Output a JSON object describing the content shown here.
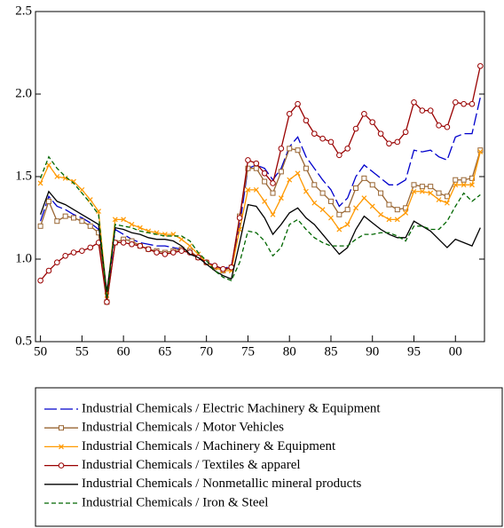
{
  "chart_data": {
    "type": "line",
    "x": [
      1950,
      1951,
      1952,
      1953,
      1954,
      1955,
      1956,
      1957,
      1958,
      1959,
      1960,
      1961,
      1962,
      1963,
      1964,
      1965,
      1966,
      1967,
      1968,
      1969,
      1970,
      1971,
      1972,
      1973,
      1974,
      1975,
      1976,
      1977,
      1978,
      1979,
      1980,
      1981,
      1982,
      1983,
      1984,
      1985,
      1986,
      1987,
      1988,
      1989,
      1990,
      1991,
      1992,
      1993,
      1994,
      1995,
      1996,
      1997,
      1998,
      1999,
      2000,
      2001,
      2002,
      2003
    ],
    "xlim": [
      1949.4,
      2003.5
    ],
    "xticks": [
      {
        "value": 1950,
        "label": "50"
      },
      {
        "value": 1955,
        "label": "55"
      },
      {
        "value": 1960,
        "label": "60"
      },
      {
        "value": 1965,
        "label": "65"
      },
      {
        "value": 1970,
        "label": "70"
      },
      {
        "value": 1975,
        "label": "75"
      },
      {
        "value": 1980,
        "label": "80"
      },
      {
        "value": 1985,
        "label": "85"
      },
      {
        "value": 1990,
        "label": "90"
      },
      {
        "value": 1995,
        "label": "95"
      },
      {
        "value": 2000,
        "label": "00"
      }
    ],
    "ylim": [
      0.5,
      2.5
    ],
    "yticks": [
      0.5,
      {
        "value": 1,
        "label": "1.0"
      },
      1.5,
      {
        "value": 2,
        "label": "2.0"
      },
      2.5
    ],
    "legend": "bottom",
    "series": [
      {
        "name": "Industrial Chemicals / Electric Machinery & Equipment",
        "color": "#0000cc",
        "linestyle": "longdash",
        "marker": "none",
        "values": [
          1.23,
          1.38,
          1.32,
          1.3,
          1.27,
          1.25,
          1.22,
          1.18,
          0.76,
          1.18,
          1.15,
          1.12,
          1.1,
          1.09,
          1.08,
          1.08,
          1.07,
          1.06,
          1.04,
          1.01,
          0.98,
          0.96,
          0.94,
          0.96,
          1.2,
          1.55,
          1.57,
          1.55,
          1.48,
          1.55,
          1.68,
          1.74,
          1.62,
          1.55,
          1.48,
          1.42,
          1.32,
          1.37,
          1.5,
          1.57,
          1.53,
          1.49,
          1.45,
          1.45,
          1.48,
          1.66,
          1.65,
          1.66,
          1.62,
          1.6,
          1.74,
          1.76,
          1.76,
          1.98
        ]
      },
      {
        "name": "Industrial Chemicals / Motor Vehicles",
        "color": "#996633",
        "linestyle": "solid",
        "marker": "square",
        "values": [
          1.2,
          1.35,
          1.23,
          1.26,
          1.25,
          1.23,
          1.2,
          1.16,
          0.74,
          1.1,
          1.12,
          1.11,
          1.08,
          1.06,
          1.05,
          1.04,
          1.05,
          1.06,
          1.05,
          1.01,
          0.98,
          0.95,
          0.93,
          0.95,
          1.26,
          1.55,
          1.55,
          1.47,
          1.4,
          1.53,
          1.67,
          1.66,
          1.55,
          1.45,
          1.4,
          1.35,
          1.27,
          1.3,
          1.43,
          1.49,
          1.45,
          1.4,
          1.33,
          1.3,
          1.31,
          1.45,
          1.44,
          1.44,
          1.4,
          1.38,
          1.48,
          1.48,
          1.49,
          1.66
        ]
      },
      {
        "name": "Industrial Chemicals / Machinery & Equipment",
        "color": "#ff9900",
        "linestyle": "solid",
        "marker": "x",
        "values": [
          1.46,
          1.57,
          1.5,
          1.49,
          1.47,
          1.42,
          1.36,
          1.29,
          0.78,
          1.24,
          1.24,
          1.21,
          1.19,
          1.17,
          1.16,
          1.15,
          1.15,
          1.12,
          1.08,
          1.03,
          0.98,
          0.95,
          0.93,
          0.93,
          1.18,
          1.42,
          1.42,
          1.35,
          1.27,
          1.37,
          1.48,
          1.52,
          1.41,
          1.34,
          1.3,
          1.25,
          1.18,
          1.21,
          1.31,
          1.37,
          1.32,
          1.27,
          1.24,
          1.24,
          1.28,
          1.41,
          1.41,
          1.4,
          1.36,
          1.34,
          1.45,
          1.45,
          1.45,
          1.65
        ]
      },
      {
        "name": "Industrial Chemicals / Textiles & apparel",
        "color": "#990000",
        "linestyle": "solid",
        "marker": "circle",
        "values": [
          0.87,
          0.93,
          0.98,
          1.02,
          1.04,
          1.05,
          1.07,
          1.1,
          0.74,
          1.1,
          1.1,
          1.09,
          1.08,
          1.06,
          1.04,
          1.03,
          1.04,
          1.05,
          1.04,
          1.01,
          0.98,
          0.96,
          0.94,
          0.95,
          1.25,
          1.6,
          1.58,
          1.52,
          1.46,
          1.67,
          1.88,
          1.94,
          1.84,
          1.76,
          1.73,
          1.71,
          1.63,
          1.67,
          1.79,
          1.88,
          1.83,
          1.76,
          1.7,
          1.71,
          1.77,
          1.95,
          1.9,
          1.9,
          1.81,
          1.8,
          1.95,
          1.94,
          1.94,
          2.17
        ]
      },
      {
        "name": "Industrial Chemicals / Nonmetallic mineral products",
        "color": "#000000",
        "linestyle": "solid",
        "marker": "none",
        "values": [
          1.27,
          1.41,
          1.35,
          1.33,
          1.3,
          1.27,
          1.24,
          1.21,
          0.8,
          1.19,
          1.18,
          1.16,
          1.15,
          1.13,
          1.12,
          1.12,
          1.11,
          1.08,
          1.03,
          1.01,
          0.97,
          0.93,
          0.9,
          0.88,
          1.1,
          1.33,
          1.32,
          1.25,
          1.15,
          1.21,
          1.28,
          1.31,
          1.25,
          1.21,
          1.15,
          1.09,
          1.03,
          1.07,
          1.18,
          1.26,
          1.22,
          1.18,
          1.15,
          1.13,
          1.13,
          1.23,
          1.2,
          1.17,
          1.12,
          1.07,
          1.12,
          1.1,
          1.08,
          1.19
        ]
      },
      {
        "name": "Industrial Chemicals / Iron & Steel",
        "color": "#006600",
        "linestyle": "dash",
        "marker": "none",
        "values": [
          1.49,
          1.62,
          1.55,
          1.5,
          1.46,
          1.4,
          1.34,
          1.27,
          0.76,
          1.21,
          1.2,
          1.19,
          1.17,
          1.16,
          1.15,
          1.14,
          1.14,
          1.14,
          1.11,
          1.04,
          0.99,
          0.93,
          0.89,
          0.87,
          0.98,
          1.17,
          1.16,
          1.11,
          1.02,
          1.07,
          1.21,
          1.24,
          1.18,
          1.13,
          1.1,
          1.08,
          1.08,
          1.08,
          1.12,
          1.15,
          1.15,
          1.16,
          1.16,
          1.14,
          1.11,
          1.2,
          1.2,
          1.18,
          1.18,
          1.23,
          1.32,
          1.4,
          1.35,
          1.39
        ]
      }
    ]
  }
}
